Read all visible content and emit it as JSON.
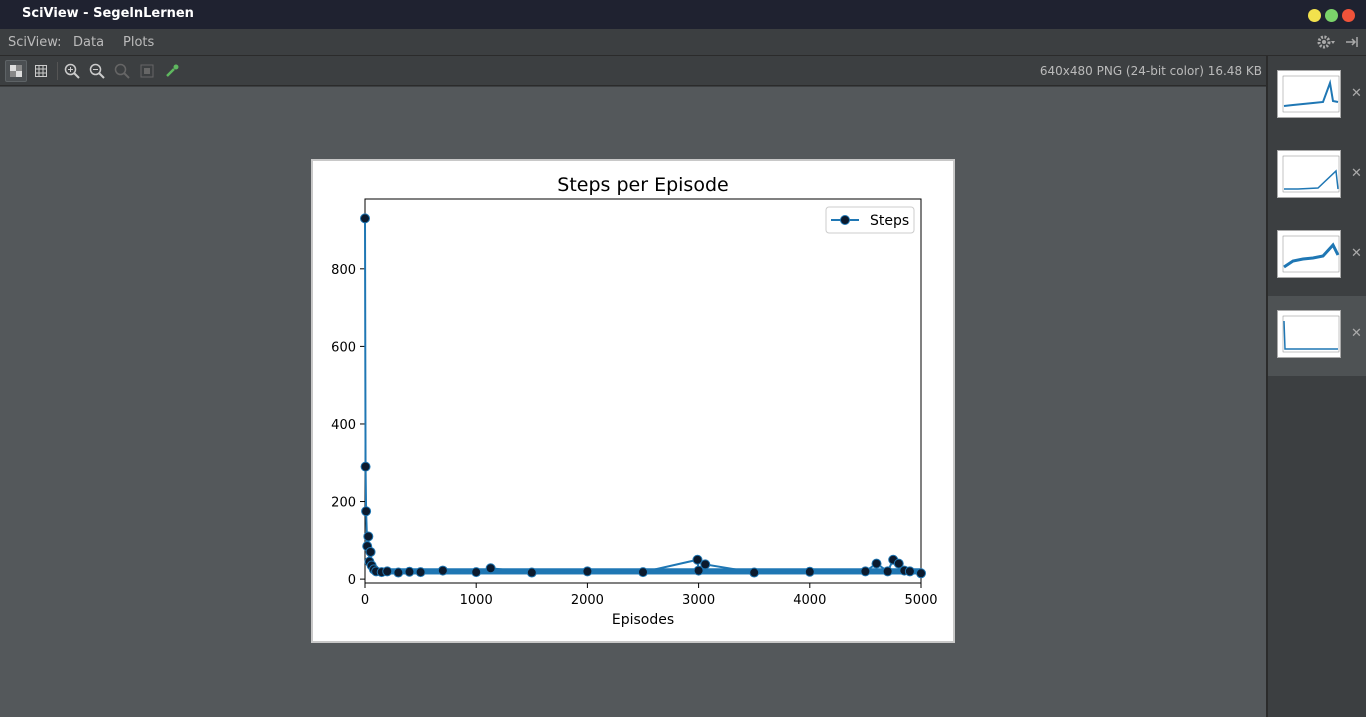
{
  "window": {
    "title": "SciView - SegelnLernen",
    "colors": {
      "minimize": "#f2e14d",
      "maximize": "#7bd36a",
      "close": "#f0533a"
    }
  },
  "menu": {
    "app_label": "SciView:",
    "items": [
      "Data",
      "Plots"
    ]
  },
  "toolbar": {
    "image_info": "640x480 PNG (24-bit color) 16.48 KB"
  },
  "thumbnails": [
    {
      "selected": false
    },
    {
      "selected": false
    },
    {
      "selected": false
    },
    {
      "selected": true
    }
  ],
  "chart_data": {
    "type": "line",
    "title": "Steps per Episode",
    "xlabel": "Episodes",
    "ylabel": "",
    "xlim": [
      0,
      5000
    ],
    "ylim": [
      -10,
      980
    ],
    "xticks": [
      0,
      1000,
      2000,
      3000,
      4000,
      5000
    ],
    "yticks": [
      0,
      200,
      400,
      600,
      800
    ],
    "legend": {
      "position": "top-right"
    },
    "grid": false,
    "color": "#1f77b4",
    "series": [
      {
        "name": "Steps",
        "marker": "circle",
        "x": [
          0,
          5,
          10,
          20,
          30,
          40,
          50,
          60,
          80,
          100,
          150,
          200,
          300,
          400,
          500,
          700,
          1000,
          1130,
          1500,
          2000,
          2500,
          2990,
          3000,
          3060,
          3500,
          4000,
          4500,
          4600,
          4700,
          4750,
          4800,
          4850,
          4900,
          5000
        ],
        "values": [
          930,
          290,
          175,
          85,
          110,
          45,
          70,
          35,
          25,
          20,
          18,
          20,
          17,
          19,
          18,
          22,
          18,
          28,
          17,
          20,
          18,
          50,
          22,
          38,
          17,
          19,
          20,
          40,
          20,
          50,
          40,
          22,
          20,
          15
        ]
      }
    ]
  }
}
